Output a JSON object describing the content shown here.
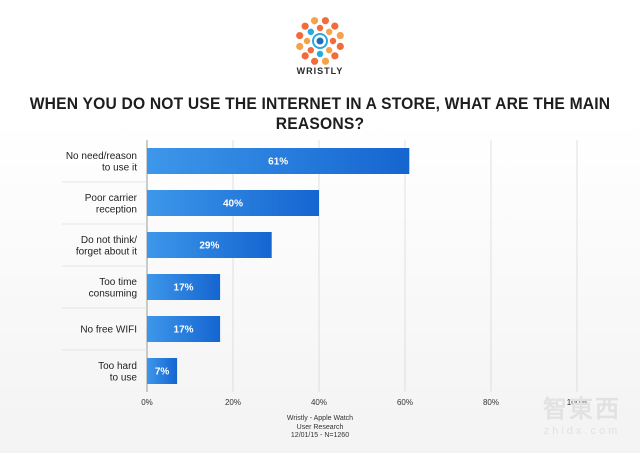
{
  "brand": {
    "name": "WRISTLY"
  },
  "chart_data": {
    "type": "bar",
    "orientation": "horizontal",
    "title": "WHEN YOU DO NOT USE THE INTERNET IN A STORE, WHAT ARE THE MAIN REASONS?",
    "categories": [
      [
        "No need/reason",
        "to use it"
      ],
      [
        "Poor carrier",
        "reception"
      ],
      [
        "Do not think/",
        "forget about it"
      ],
      [
        "Too time",
        "consuming"
      ],
      [
        "No free WIFI"
      ],
      [
        "Too hard",
        "to use"
      ]
    ],
    "values": [
      61,
      40,
      29,
      17,
      17,
      7
    ],
    "value_labels": [
      "61%",
      "40%",
      "29%",
      "17%",
      "17%",
      "7%"
    ],
    "xlim": [
      0,
      100
    ],
    "xticks": [
      0,
      20,
      40,
      60,
      80,
      100
    ],
    "xtick_labels": [
      "0%",
      "20%",
      "40%",
      "60%",
      "80%",
      "100%"
    ],
    "grid": true,
    "bar_color_start": "#3d97ea",
    "bar_color_end": "#1565d0"
  },
  "footer": {
    "line1": "Wristly - Apple Watch",
    "line2": "User Research",
    "line3": "12/01/15 - N=1260"
  },
  "watermark": {
    "main": "智東西",
    "sub": "zhidx.com"
  }
}
